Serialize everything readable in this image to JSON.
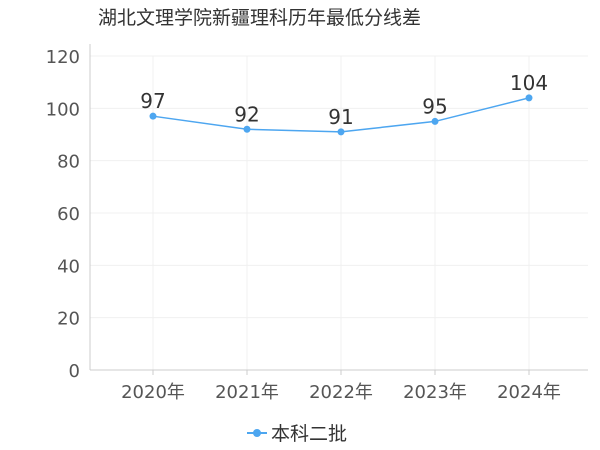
{
  "chart_data": {
    "type": "line",
    "title": "湖北文理学院新疆理科历年最低分线差",
    "xlabel": "",
    "ylabel": "",
    "categories": [
      "2020年",
      "2021年",
      "2022年",
      "2023年",
      "2024年"
    ],
    "series": [
      {
        "name": "本科二批",
        "values": [
          97,
          92,
          91,
          95,
          104
        ],
        "color": "#4da6f0"
      }
    ],
    "ylim": [
      0,
      120
    ],
    "yticks": [
      0,
      20,
      40,
      60,
      80,
      100,
      120
    ],
    "grid": true,
    "legend_position": "bottom-center",
    "colors": {
      "axis": "#cccccc",
      "grid": "#f0f0f0",
      "line": "#4da6f0"
    }
  }
}
